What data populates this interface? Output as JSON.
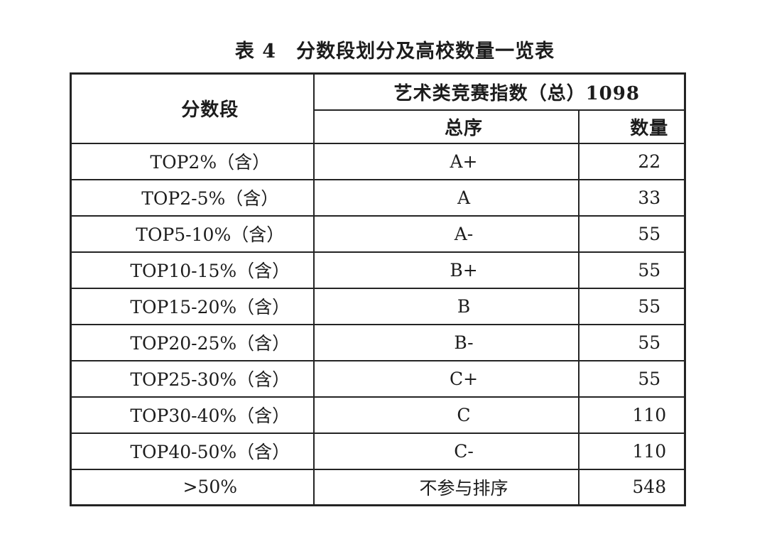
{
  "page": {
    "background_color": "#ffffff",
    "text_color": "#1c1c1c",
    "border_color": "#242424"
  },
  "title": "表 4　分数段划分及高校数量一览表",
  "table": {
    "score_col_header": "分数段",
    "group_header": "艺术类竞赛指数（总）1098",
    "group_total": 1098,
    "sub_header_order": "总序",
    "sub_header_count": "数量",
    "rows": [
      {
        "range": "TOP2%（含）",
        "grade": "A+",
        "count": 22
      },
      {
        "range": "TOP2-5%（含）",
        "grade": "A",
        "count": 33
      },
      {
        "range": "TOP5-10%（含）",
        "grade": "A-",
        "count": 55
      },
      {
        "range": "TOP10-15%（含）",
        "grade": "B+",
        "count": 55
      },
      {
        "range": "TOP15-20%（含）",
        "grade": "B",
        "count": 55
      },
      {
        "range": "TOP20-25%（含）",
        "grade": "B-",
        "count": 55
      },
      {
        "range": "TOP25-30%（含）",
        "grade": "C+",
        "count": 55
      },
      {
        "range": "TOP30-40%（含）",
        "grade": "C",
        "count": 110
      },
      {
        "range": "TOP40-50%（含）",
        "grade": "C-",
        "count": 110
      },
      {
        "range": ">50%",
        "grade": "不参与排序",
        "count": 548
      }
    ]
  }
}
